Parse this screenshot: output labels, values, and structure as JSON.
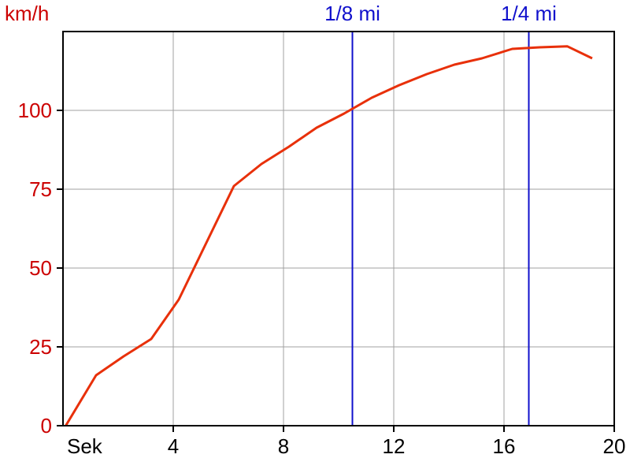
{
  "chart_data": {
    "type": "line",
    "xlabel": "Sek",
    "ylabel": "km/h",
    "xlim": [
      0,
      20
    ],
    "ylim": [
      0,
      125
    ],
    "x_ticks": [
      4,
      8,
      12,
      16,
      20
    ],
    "x_tick_labels": [
      "4",
      "8",
      "12",
      "16",
      "20"
    ],
    "y_ticks": [
      0,
      25,
      50,
      75,
      100
    ],
    "y_tick_labels": [
      "0",
      "25",
      "50",
      "75",
      "100"
    ],
    "grid": true,
    "series": [
      {
        "color": "#e8300a",
        "points": [
          [
            0.1,
            0
          ],
          [
            1.2,
            16
          ],
          [
            2.2,
            22
          ],
          [
            3.2,
            27.5
          ],
          [
            4.2,
            40
          ],
          [
            5.2,
            58
          ],
          [
            6.2,
            76
          ],
          [
            7.2,
            83
          ],
          [
            8.2,
            88.5
          ],
          [
            9.2,
            94.5
          ],
          [
            10.2,
            99
          ],
          [
            11.2,
            104
          ],
          [
            12.2,
            108
          ],
          [
            13.2,
            111.5
          ],
          [
            14.2,
            114.5
          ],
          [
            15.2,
            116.5
          ],
          [
            16.3,
            119.5
          ],
          [
            17.3,
            120
          ],
          [
            18.3,
            120.3
          ],
          [
            19.2,
            116.5
          ]
        ]
      }
    ],
    "markers": [
      {
        "label": "1/8 mi",
        "x": 10.5,
        "color": "#1010cc"
      },
      {
        "label": "1/4 mi",
        "x": 16.9,
        "color": "#1010cc"
      }
    ],
    "colors": {
      "axis_text": "#000000",
      "y_text": "#cc0000",
      "grid": "#a0a0a0"
    }
  }
}
